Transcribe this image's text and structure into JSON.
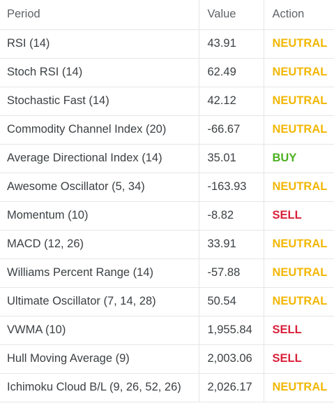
{
  "table": {
    "headers": {
      "period": "Period",
      "value": "Value",
      "action": "Action"
    },
    "rows": [
      {
        "period": "RSI (14)",
        "value": "43.91",
        "action": "NEUTRAL"
      },
      {
        "period": "Stoch RSI (14)",
        "value": "62.49",
        "action": "NEUTRAL"
      },
      {
        "period": "Stochastic Fast (14)",
        "value": "42.12",
        "action": "NEUTRAL"
      },
      {
        "period": "Commodity Channel Index (20)",
        "value": "-66.67",
        "action": "NEUTRAL"
      },
      {
        "period": "Average Directional Index (14)",
        "value": "35.01",
        "action": "BUY"
      },
      {
        "period": "Awesome Oscillator (5, 34)",
        "value": "-163.93",
        "action": "NEUTRAL"
      },
      {
        "period": "Momentum (10)",
        "value": "-8.82",
        "action": "SELL"
      },
      {
        "period": "MACD (12, 26)",
        "value": "33.91",
        "action": "NEUTRAL"
      },
      {
        "period": "Williams Percent Range (14)",
        "value": "-57.88",
        "action": "NEUTRAL"
      },
      {
        "period": "Ultimate Oscillator (7, 14, 28)",
        "value": "50.54",
        "action": "NEUTRAL"
      },
      {
        "period": "VWMA (10)",
        "value": "1,955.84",
        "action": "SELL"
      },
      {
        "period": "Hull Moving Average (9)",
        "value": "2,003.06",
        "action": "SELL"
      },
      {
        "period": "Ichimoku Cloud B/L (9, 26, 52, 26)",
        "value": "2,026.17",
        "action": "NEUTRAL"
      }
    ]
  },
  "colors": {
    "neutral": "#f2b705",
    "buy": "#4caf1f",
    "sell": "#d9213a",
    "text": "#3c4043",
    "header_text": "#5f6368",
    "grid": "#e6e6e6"
  }
}
